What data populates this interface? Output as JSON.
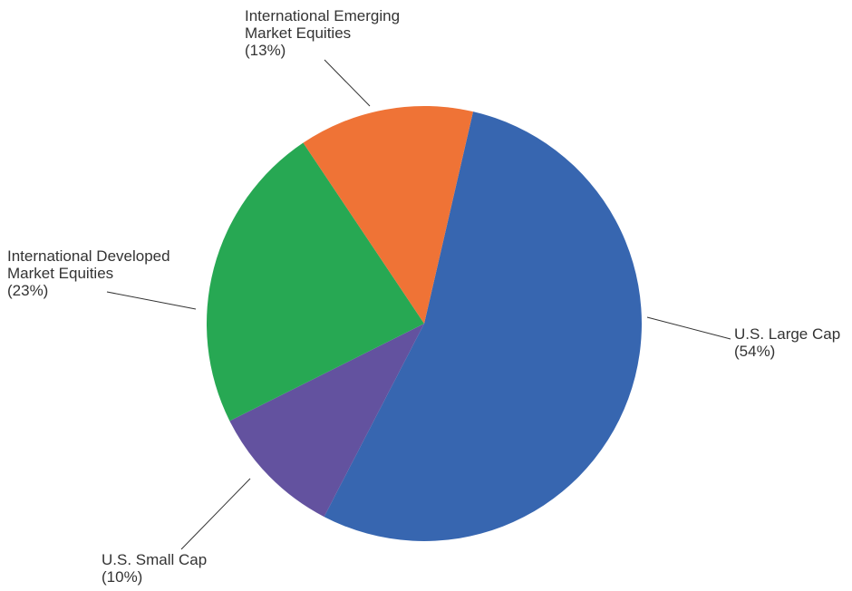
{
  "chart_data": {
    "type": "pie",
    "slices": [
      {
        "label_lines": [
          "U.S. Large Cap"
        ],
        "value": 54,
        "value_label": "(54%)",
        "color": "#3766b0"
      },
      {
        "label_lines": [
          "U.S. Small Cap"
        ],
        "value": 10,
        "value_label": "(10%)",
        "color": "#63529f"
      },
      {
        "label_lines": [
          "International Developed",
          "Market Equities"
        ],
        "value": 23,
        "value_label": "(23%)",
        "color": "#27a853"
      },
      {
        "label_lines": [
          "International Emerging",
          "Market Equities"
        ],
        "value": 13,
        "value_label": "(13%)",
        "color": "#ef7336"
      }
    ],
    "direction": "clockwise",
    "labels_outside_with_leader_lines": true
  }
}
